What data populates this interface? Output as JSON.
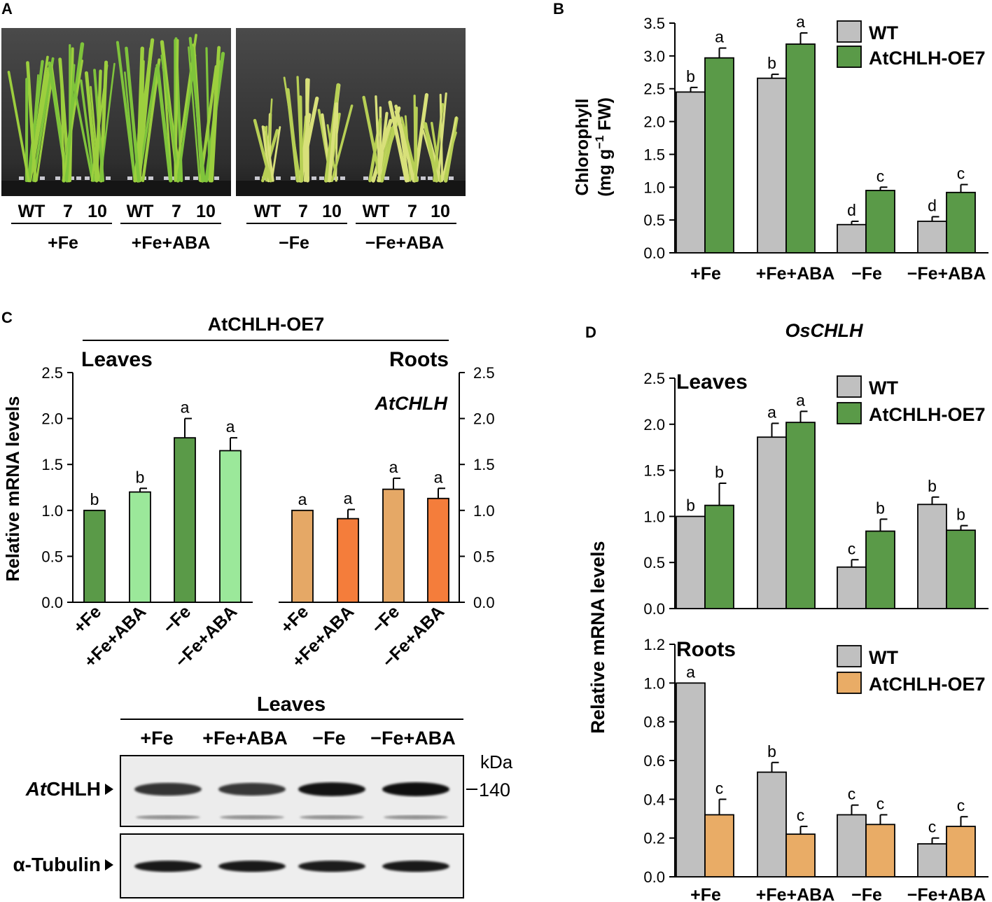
{
  "panels": {
    "A": {
      "letter": "A",
      "photo1_lines": [
        "WT",
        "7",
        "10"
      ],
      "photo2_lines": [
        "WT",
        "7",
        "10"
      ],
      "treatments": [
        "+Fe",
        "+Fe+ABA",
        "−Fe",
        "−Fe+ABA"
      ]
    },
    "C_blot": {
      "title": "Leaves",
      "lanes": [
        "+Fe",
        "+Fe+ABA",
        "−Fe",
        "−Fe+ABA"
      ],
      "band1_prefix": "At",
      "band1_suffix": "CHLH",
      "band2_label": "α-Tubulin",
      "kda_label": "kDa",
      "kda_value": "140",
      "band1_intensity": [
        0.72,
        0.7,
        0.95,
        0.98
      ],
      "band2_intensity": [
        0.9,
        0.9,
        0.88,
        0.9
      ]
    }
  },
  "colors": {
    "wt_gray": "#c0c0c0",
    "oe_green": "#5a9a48",
    "light_green": "#9be89a",
    "tan": "#e5a866",
    "orange": "#f47d3b",
    "roots_oe_tan": "#e9ac66"
  },
  "chart_data": [
    {
      "id": "B",
      "letter": "B",
      "type": "bar",
      "ylabel_line1": "Chlorophyll",
      "ylabel_line2_pre": "(mg g",
      "ylabel_line2_sup": "−1",
      "ylabel_line2_post": " FW)",
      "ylim": [
        0,
        3.5
      ],
      "yticks": [
        "0.0",
        "0.5",
        "1.0",
        "1.5",
        "2.0",
        "2.5",
        "3.0",
        "3.5"
      ],
      "categories": [
        "+Fe",
        "+Fe+ABA",
        "−Fe",
        "−Fe+ABA"
      ],
      "legend": [
        "WT",
        "AtCHLH-OE7"
      ],
      "series": [
        {
          "name": "WT",
          "values": [
            2.45,
            2.66,
            0.43,
            0.48
          ],
          "err": [
            0.07,
            0.06,
            0.05,
            0.07
          ],
          "letters": [
            "b",
            "b",
            "d",
            "d"
          ]
        },
        {
          "name": "AtCHLH-OE7",
          "values": [
            2.97,
            3.18,
            0.95,
            0.92
          ],
          "err": [
            0.15,
            0.17,
            0.05,
            0.12
          ],
          "letters": [
            "a",
            "a",
            "c",
            "c"
          ]
        }
      ]
    },
    {
      "id": "C_leaves",
      "letter": "C",
      "type": "bar",
      "header": "AtCHLH-OE7",
      "subtitle": "Leaves",
      "ylabel": "Relative mRNA levels",
      "ylim": [
        0,
        2.5
      ],
      "yticks": [
        "0.0",
        "0.5",
        "1.0",
        "1.5",
        "2.0",
        "2.5"
      ],
      "categories": [
        "+Fe",
        "+Fe+ABA",
        "−Fe",
        "−Fe+ABA"
      ],
      "series": [
        {
          "name": "AtCHLH-OE7",
          "values": [
            1.0,
            1.2,
            1.79,
            1.65
          ],
          "err": [
            0.0,
            0.04,
            0.21,
            0.14
          ],
          "letters": [
            "b",
            "b",
            "a",
            "a"
          ]
        }
      ]
    },
    {
      "id": "C_roots",
      "type": "bar",
      "subtitle": "Roots",
      "gene": "AtCHLH",
      "ylim": [
        0,
        2.5
      ],
      "yticks": [
        "0.0",
        "0.5",
        "1.0",
        "1.5",
        "2.0",
        "2.5"
      ],
      "categories": [
        "+Fe",
        "+Fe+ABA",
        "−Fe",
        "−Fe+ABA"
      ],
      "series": [
        {
          "name": "AtCHLH-OE7",
          "values": [
            1.0,
            0.91,
            1.23,
            1.13
          ],
          "err": [
            0.0,
            0.1,
            0.12,
            0.11
          ],
          "letters": [
            "a",
            "a",
            "a",
            "a"
          ]
        }
      ]
    },
    {
      "id": "D_leaves",
      "letter": "D",
      "type": "bar",
      "gene": "OsCHLH",
      "subtitle": "Leaves",
      "ylabel": "Relative mRNA levels",
      "ylim": [
        0,
        2.5
      ],
      "yticks": [
        "0.0",
        "0.5",
        "1.0",
        "1.5",
        "2.0",
        "2.5"
      ],
      "categories": [
        "+Fe",
        "+Fe+ABA",
        "−Fe",
        "−Fe+ABA"
      ],
      "legend": [
        "WT",
        "AtCHLH-OE7"
      ],
      "series": [
        {
          "name": "WT",
          "values": [
            1.0,
            1.86,
            0.45,
            1.13
          ],
          "err": [
            0.0,
            0.15,
            0.08,
            0.08
          ],
          "letters": [
            "b",
            "a",
            "c",
            "b"
          ]
        },
        {
          "name": "AtCHLH-OE7",
          "values": [
            1.12,
            2.02,
            0.84,
            0.85
          ],
          "err": [
            0.24,
            0.12,
            0.13,
            0.05
          ],
          "letters": [
            "b",
            "a",
            "b",
            "b"
          ]
        }
      ]
    },
    {
      "id": "D_roots",
      "type": "bar",
      "subtitle": "Roots",
      "ylim": [
        0,
        1.2
      ],
      "yticks": [
        "0.0",
        "0.2",
        "0.4",
        "0.6",
        "0.8",
        "1.0",
        "1.2"
      ],
      "categories": [
        "+Fe",
        "+Fe+ABA",
        "−Fe",
        "−Fe+ABA"
      ],
      "legend": [
        "WT",
        "AtCHLH-OE7"
      ],
      "series": [
        {
          "name": "WT",
          "values": [
            1.0,
            0.54,
            0.32,
            0.17
          ],
          "err": [
            0.0,
            0.05,
            0.05,
            0.03
          ],
          "letters": [
            "a",
            "b",
            "c",
            "c"
          ]
        },
        {
          "name": "AtCHLH-OE7",
          "values": [
            0.32,
            0.22,
            0.27,
            0.26
          ],
          "err": [
            0.08,
            0.04,
            0.05,
            0.05
          ],
          "letters": [
            "c",
            "c",
            "c",
            "c"
          ]
        }
      ]
    }
  ]
}
